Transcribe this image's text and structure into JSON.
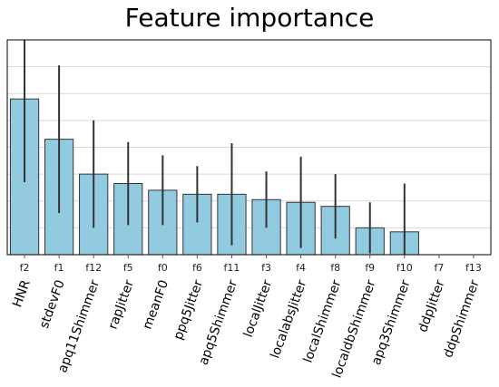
{
  "chart_data": {
    "type": "bar",
    "title": "Feature importance",
    "xlabel": "",
    "ylabel": "",
    "ylim": [
      0,
      0.16
    ],
    "grid": true,
    "y_tick_labels_visible": false,
    "bar_color": "#92cbe0",
    "error_bar_color": "#333333",
    "categories": [
      "f2",
      "f1",
      "f12",
      "f5",
      "f0",
      "f6",
      "f11",
      "f3",
      "f4",
      "f8",
      "f9",
      "f10",
      "f7",
      "f13"
    ],
    "feature_names": [
      "HNR",
      "stdevF0",
      "apq11Shimmer",
      "rapJitter",
      "meanF0",
      "ppq5Jitter",
      "apq5Shimmer",
      "localJitter",
      "localabsJitter",
      "localShimmer",
      "localdbShimmer",
      "apq3Shimmer",
      "ddpJitter",
      "ddpShimmer"
    ],
    "values": [
      0.116,
      0.086,
      0.06,
      0.053,
      0.048,
      0.045,
      0.045,
      0.041,
      0.039,
      0.036,
      0.02,
      0.017,
      0.0,
      0.0
    ],
    "errors": [
      0.062,
      0.055,
      0.04,
      0.031,
      0.026,
      0.021,
      0.038,
      0.021,
      0.034,
      0.024,
      0.019,
      0.036,
      0.0,
      0.0
    ]
  }
}
